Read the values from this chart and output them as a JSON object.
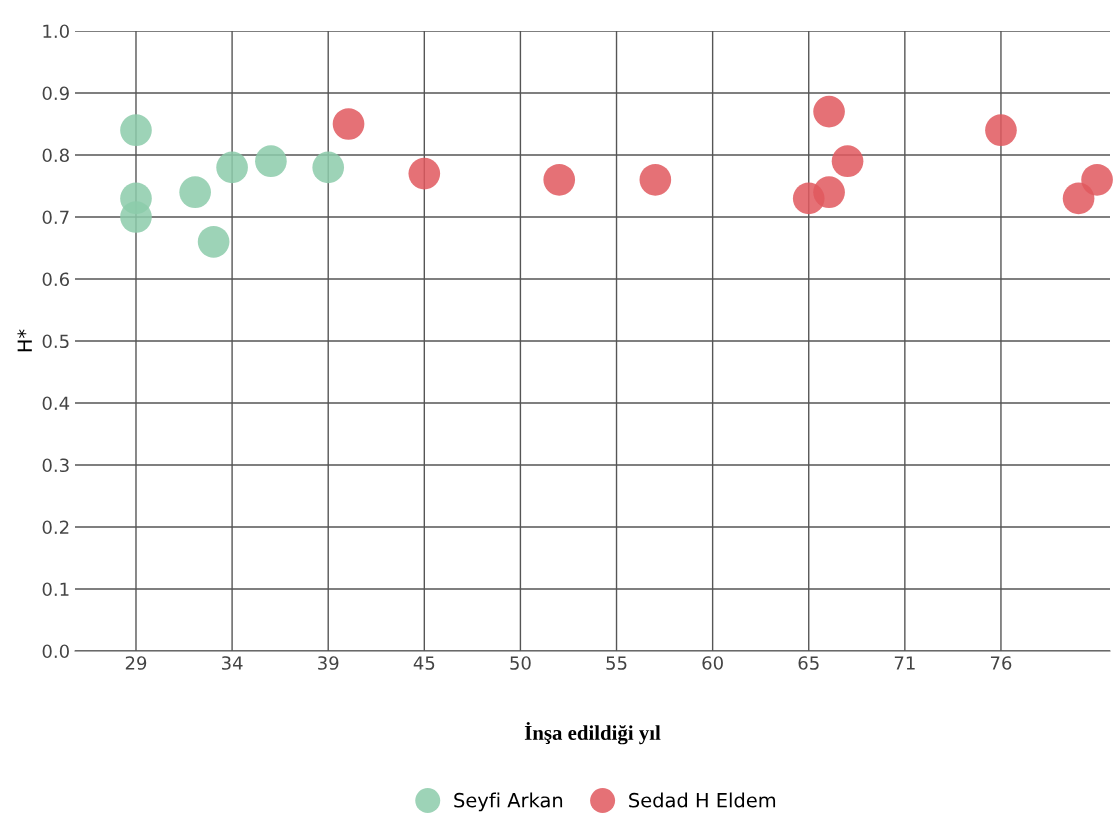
{
  "chart_data": {
    "type": "scatter",
    "xlabel": "İnşa edildiği yıl",
    "ylabel": "H*",
    "xlim": [
      25.7,
      81.7
    ],
    "ylim": [
      0,
      1
    ],
    "xticks": [
      {
        "value": 29,
        "label": "29"
      },
      {
        "value": 34.2,
        "label": "34"
      },
      {
        "value": 39.4,
        "label": "39"
      },
      {
        "value": 44.6,
        "label": "45"
      },
      {
        "value": 49.8,
        "label": "50"
      },
      {
        "value": 55,
        "label": "55"
      },
      {
        "value": 60.2,
        "label": "60"
      },
      {
        "value": 65.4,
        "label": "65"
      },
      {
        "value": 70.6,
        "label": "71"
      },
      {
        "value": 75.8,
        "label": "76"
      }
    ],
    "yticks": [
      {
        "value": 0,
        "label": "0.0"
      },
      0.1,
      0.2,
      0.3,
      0.4,
      0.5,
      0.6,
      0.7,
      0.8,
      0.9,
      {
        "value": 1,
        "label": "1.0"
      }
    ],
    "grid": true,
    "legend": "bottom",
    "marker": "circle",
    "series": [
      {
        "name": "Seyfi Arkan",
        "color": "#8ccbaa",
        "x": [
          29,
          29,
          29,
          32.2,
          33.2,
          34.2,
          36.3,
          39.4
        ],
        "values": [
          0.84,
          0.73,
          0.7,
          0.74,
          0.66,
          0.78,
          0.79,
          0.78
        ]
      },
      {
        "name": "Sedad H Eldem",
        "color": "#e0585e",
        "x": [
          40.5,
          44.6,
          51.9,
          57.1,
          65.4,
          66.5,
          66.5,
          67.5,
          75.8,
          80.0,
          81.0
        ],
        "values": [
          0.85,
          0.77,
          0.76,
          0.76,
          0.73,
          0.74,
          0.87,
          0.79,
          0.84,
          0.73,
          0.76
        ]
      }
    ]
  }
}
